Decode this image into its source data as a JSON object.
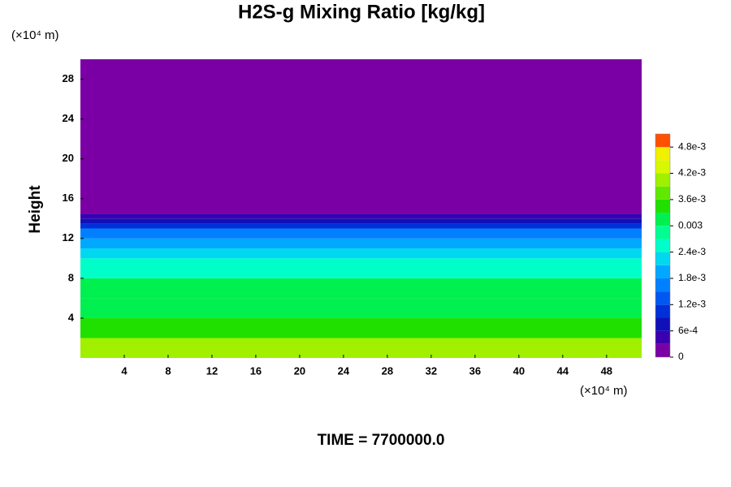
{
  "chart_data": {
    "type": "heatmap",
    "title": "H2S-g Mixing Ratio [kg/kg]",
    "y_label": "Height",
    "x_unit": "(×10⁴ m)",
    "y_unit": "(×10⁴ m)",
    "time_label": "TIME = 7700000.0",
    "xlim": [
      0,
      51.2
    ],
    "ylim": [
      0,
      30
    ],
    "xticks": [
      4,
      8,
      12,
      16,
      20,
      24,
      28,
      32,
      36,
      40,
      44,
      48
    ],
    "yticks": [
      4,
      8,
      12,
      16,
      20,
      24,
      28
    ],
    "y_edges": [
      0,
      2,
      4,
      6,
      8,
      10,
      11,
      12,
      13,
      13.5,
      14,
      14.5,
      30
    ],
    "values": [
      0.004,
      0.0036,
      0.0033,
      0.003,
      0.0026,
      0.0023,
      0.002,
      0.0016,
      0.0012,
      0.0008,
      0.0004,
      0.0001
    ],
    "clim": [
      0,
      0.0051
    ],
    "colors": [
      "#7a00a6",
      "#3a00b0",
      "#1010b8",
      "#0030d8",
      "#0058f0",
      "#0080ff",
      "#00a8ff",
      "#00d8f0",
      "#00ffc8",
      "#00ff90",
      "#00f050",
      "#20e000",
      "#60e800",
      "#a0f000",
      "#d8f800",
      "#f0f000",
      "#ff5000",
      "#ff8080"
    ],
    "colorbar_ticks": [
      0,
      {
        "value": 0.0006,
        "label": "6e-4"
      },
      {
        "value": 0.0012,
        "label": "1.2e-3"
      },
      {
        "value": 0.0018,
        "label": "1.8e-3"
      },
      {
        "value": 0.0024,
        "label": "2.4e-3"
      },
      0.003,
      {
        "value": 0.0036,
        "label": "3.6e-3"
      },
      {
        "value": 0.0042,
        "label": "4.2e-3"
      },
      {
        "value": 0.0048,
        "label": "4.8e-3"
      }
    ]
  }
}
